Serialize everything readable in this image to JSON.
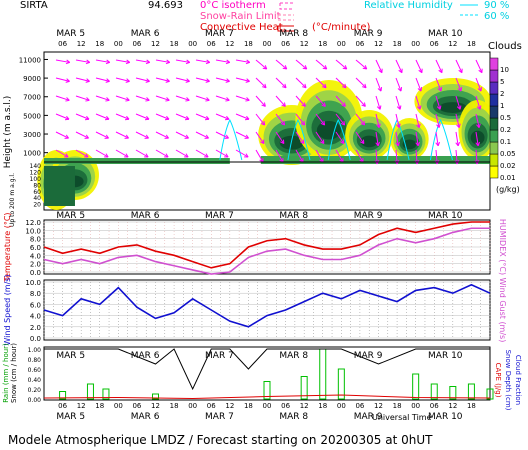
{
  "header": {
    "station": "SIRTA",
    "coords": "94.693",
    "isotherm_label": "0°C isotherm",
    "snow_rain_label": "Snow-Rain Limit",
    "convective_label": "Convective Heat.",
    "convective_unit": "(°C/minute)",
    "rh_label": "Relative Humidity",
    "rh_90": "90 %",
    "rh_60": "60 %"
  },
  "footer": {
    "title": "Modele Atmospherique LMDZ / Forecast starting on 20200305 at 0hUT",
    "universal_time": "Universal Time"
  },
  "days": [
    "MAR  5",
    "MAR  6",
    "MAR  7",
    "MAR  8",
    "MAR  9",
    "MAR 10"
  ],
  "hours": [
    "06",
    "12",
    "18",
    "00"
  ],
  "colors": {
    "temperature": "#e00000",
    "humidex": "#d050d0",
    "wind": "#1010d0",
    "rain": "#00c000",
    "snow": "#000000",
    "cape": "#e00000",
    "wind_arrows": "#ff00ff",
    "rh": "#00e0ff"
  },
  "chart_data": [
    {
      "type": "heatmap",
      "title": "",
      "ylabel": "Height (m a.s.l.)",
      "ylabel_low": "Up to 200 m a.g.l.",
      "y_ticks_high": [
        1000,
        3000,
        5000,
        7000,
        9000,
        11000
      ],
      "y_ticks_low": [
        20,
        40,
        60,
        80,
        100,
        120,
        140
      ],
      "colorbar_title": "Clouds",
      "colorbar_unit": "(g/kg)",
      "colorbar_ticks": [
        "0.01",
        "0.02",
        "0.05",
        "0.1",
        "0.2",
        "0.5",
        "1",
        "2",
        "5",
        "10"
      ]
    },
    {
      "type": "line",
      "ylabel": "Temperature (°C)",
      "ylabel_right": "HUMIDEX (°C)",
      "y_ticks": [
        0.0,
        2.0,
        4.0,
        6.0,
        8.0,
        10.0,
        12.0
      ],
      "ylim": [
        0,
        12
      ],
      "series": [
        {
          "name": "Temperature",
          "x_hours": [
            0,
            6,
            12,
            18,
            24,
            30,
            36,
            42,
            48,
            54,
            60,
            66,
            72,
            78,
            84,
            90,
            96,
            102,
            108,
            114,
            120,
            126,
            132,
            138,
            144
          ],
          "values": [
            6.0,
            4.5,
            5.5,
            4.5,
            6.0,
            6.5,
            5.0,
            4.0,
            2.5,
            1.0,
            2.0,
            6.0,
            7.5,
            8.0,
            6.5,
            5.5,
            5.5,
            6.5,
            9.0,
            10.5,
            9.5,
            10.5,
            11.5,
            12.0,
            12.0
          ]
        },
        {
          "name": "HUMIDEX",
          "x_hours": [
            0,
            6,
            12,
            18,
            24,
            30,
            36,
            42,
            48,
            54,
            60,
            66,
            72,
            78,
            84,
            90,
            96,
            102,
            108,
            114,
            120,
            126,
            132,
            138,
            144
          ],
          "values": [
            3.0,
            2.0,
            3.0,
            2.0,
            3.5,
            4.0,
            2.5,
            1.5,
            0.5,
            -0.5,
            0.0,
            3.5,
            5.0,
            5.5,
            4.0,
            3.0,
            3.0,
            4.0,
            6.5,
            8.0,
            7.0,
            8.0,
            9.5,
            10.5,
            10.5
          ]
        }
      ]
    },
    {
      "type": "line",
      "ylabel": "Wind Speed (m/s)",
      "ylabel_right": "Wind Gust (m/s)",
      "y_ticks": [
        0.0,
        2.0,
        4.0,
        6.0,
        8.0,
        10.0
      ],
      "ylim": [
        0,
        10
      ],
      "series": [
        {
          "name": "Wind Speed",
          "x_hours": [
            0,
            6,
            12,
            18,
            24,
            30,
            36,
            42,
            48,
            54,
            60,
            66,
            72,
            78,
            84,
            90,
            96,
            102,
            108,
            114,
            120,
            126,
            132,
            138,
            144
          ],
          "values": [
            5.0,
            4.0,
            7.0,
            6.0,
            9.0,
            5.5,
            3.5,
            4.5,
            7.0,
            5.0,
            3.0,
            2.0,
            4.0,
            5.0,
            6.5,
            8.0,
            7.0,
            8.5,
            7.5,
            6.5,
            8.5,
            9.0,
            8.0,
            9.5,
            8.0
          ]
        }
      ]
    },
    {
      "type": "bar",
      "ylabel": "Rain (mm / hour)",
      "ylabel2": "Snow (cm / hour)",
      "ylabel_right": "CAPE (J/g)",
      "ylabel_right2": "Snow Depth (cm)",
      "ylabel_right3": "Cloud Fraction",
      "y_ticks": [
        0.0,
        0.2,
        0.4,
        0.6,
        0.8,
        1.0
      ],
      "ylim": [
        0,
        1
      ],
      "series": [
        {
          "name": "Rain",
          "x_hours": [
            6,
            15,
            20,
            36,
            72,
            84,
            90,
            96,
            120,
            126,
            132,
            138,
            144
          ],
          "values": [
            0.15,
            0.3,
            0.2,
            0.1,
            0.35,
            0.45,
            1.0,
            0.6,
            0.5,
            0.3,
            0.25,
            0.3,
            0.2
          ]
        },
        {
          "name": "Cloud Fraction",
          "x_hours": [
            0,
            12,
            24,
            36,
            42,
            48,
            54,
            60,
            66,
            72,
            84,
            96,
            108,
            120,
            132,
            144
          ],
          "values": [
            1.0,
            1.0,
            1.0,
            0.7,
            1.0,
            0.2,
            1.0,
            1.0,
            0.6,
            1.0,
            1.0,
            1.0,
            0.7,
            1.0,
            1.0,
            1.0
          ]
        },
        {
          "name": "CAPE",
          "x_hours": [
            0,
            24,
            48,
            72,
            96,
            120,
            144
          ],
          "values": [
            0.02,
            0.03,
            0.01,
            0.05,
            0.08,
            0.03,
            0.02
          ]
        }
      ]
    }
  ]
}
